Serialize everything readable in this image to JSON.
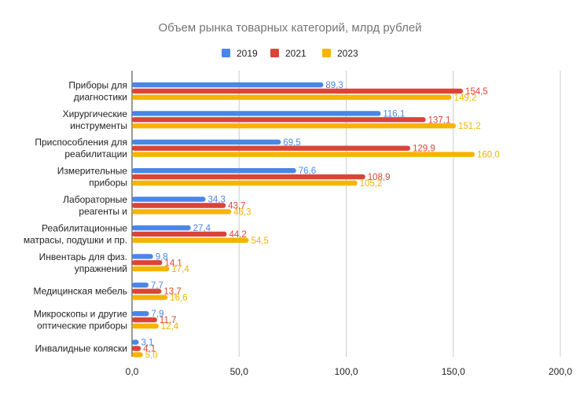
{
  "chart_data": {
    "type": "bar",
    "orientation": "horizontal",
    "title": "Объем рынка товарных категорий, млрд рублей",
    "categories": [
      [
        "Приборы для",
        "диагностики"
      ],
      [
        "Хирургические",
        "инструменты"
      ],
      [
        "Приспособления для",
        "реабилитации"
      ],
      [
        "Измерительные",
        "приборы"
      ],
      [
        "Лабораторные",
        "реагенты и"
      ],
      [
        "Реабилитационные",
        "матрасы, подушки и пр."
      ],
      [
        "Инвентарь для физ.",
        "упражнений"
      ],
      [
        "Медицинская мебель"
      ],
      [
        "Микроскопы и другие",
        "оптические приборы"
      ],
      [
        "Инвалидные коляски"
      ]
    ],
    "series": [
      {
        "name": "2019",
        "color": "#4a86e8",
        "values": [
          89.3,
          116.1,
          69.5,
          76.6,
          34.3,
          27.4,
          9.8,
          7.7,
          7.9,
          3.1
        ],
        "labels": [
          "89,3",
          "116,1",
          "69,5",
          "76,6",
          "34,3",
          "27,4",
          "9,8",
          "7,7",
          "7,9",
          "3,1"
        ]
      },
      {
        "name": "2021",
        "color": "#db4437",
        "values": [
          154.5,
          137.1,
          129.9,
          108.9,
          43.7,
          44.2,
          14.1,
          13.7,
          11.7,
          4.1
        ],
        "labels": [
          "154,5",
          "137,1",
          "129,9",
          "108,9",
          "43,7",
          "44,2",
          "14,1",
          "13,7",
          "11,7",
          "4,1"
        ]
      },
      {
        "name": "2023",
        "color": "#f4b400",
        "values": [
          149.2,
          151.2,
          160.0,
          105.2,
          46.3,
          54.5,
          17.4,
          16.6,
          12.4,
          5.0
        ],
        "labels": [
          "149,2",
          "151,2",
          "160,0",
          "105,2",
          "46,3",
          "54,5",
          "17,4",
          "16,6",
          "12,4",
          "5,0"
        ]
      }
    ],
    "xlim": [
      0,
      200
    ],
    "xticks": [
      0,
      50,
      100,
      150,
      200
    ],
    "xtick_labels": [
      "0,0",
      "50,0",
      "100,0",
      "150,0",
      "200,0"
    ],
    "legend_position": "top",
    "grid": "vertical"
  }
}
